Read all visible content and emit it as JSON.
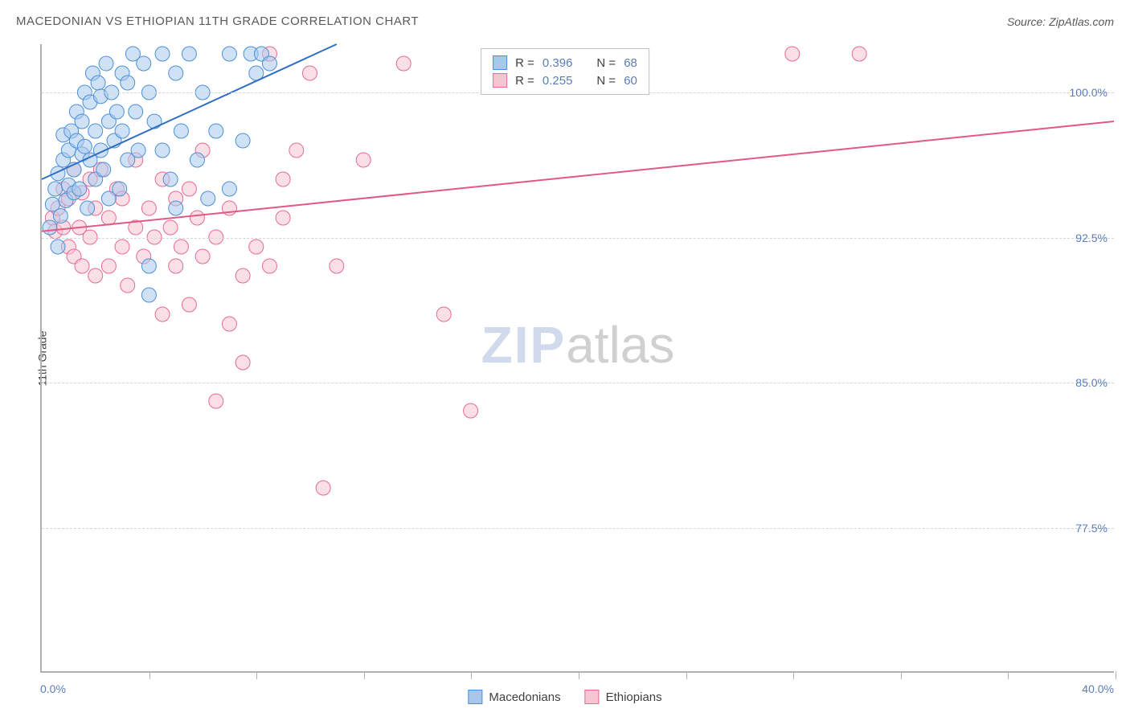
{
  "header": {
    "title": "MACEDONIAN VS ETHIOPIAN 11TH GRADE CORRELATION CHART",
    "source": "Source: ZipAtlas.com"
  },
  "chart": {
    "type": "scatter",
    "xlim": [
      0,
      40
    ],
    "ylim": [
      70,
      102.5
    ],
    "ylabel": "11th Grade",
    "xaxis_left": "0.0%",
    "xaxis_right": "40.0%",
    "yticks": [
      {
        "v": 77.5,
        "label": "77.5%"
      },
      {
        "v": 85.0,
        "label": "85.0%"
      },
      {
        "v": 92.5,
        "label": "92.5%"
      },
      {
        "v": 100.0,
        "label": "100.0%"
      }
    ],
    "xticks_minor": [
      4,
      8,
      12,
      16,
      20,
      24,
      28,
      32,
      36,
      40
    ],
    "grid_color": "#d5d5d5",
    "axis_color": "#b0b0b0",
    "label_color": "#5a7db8",
    "text_color": "#404040",
    "background_color": "#ffffff",
    "marker_radius": 9,
    "marker_opacity": 0.55,
    "line_width": 2,
    "series": [
      {
        "name": "Macedonians",
        "color_fill": "#a7c8ed",
        "color_stroke": "#4a90d9",
        "line_color": "#2e6fc4",
        "R": "0.396",
        "N": "68",
        "trendline": {
          "x1": 0,
          "y1": 95.5,
          "x2": 11,
          "y2": 102.5
        },
        "points": [
          [
            0.3,
            93.0
          ],
          [
            0.4,
            94.2
          ],
          [
            0.5,
            95.0
          ],
          [
            0.6,
            92.0
          ],
          [
            0.6,
            95.8
          ],
          [
            0.7,
            93.6
          ],
          [
            0.8,
            96.5
          ],
          [
            0.8,
            97.8
          ],
          [
            0.9,
            94.4
          ],
          [
            1.0,
            97.0
          ],
          [
            1.0,
            95.2
          ],
          [
            1.1,
            98.0
          ],
          [
            1.2,
            96.0
          ],
          [
            1.2,
            94.8
          ],
          [
            1.3,
            99.0
          ],
          [
            1.3,
            97.5
          ],
          [
            1.4,
            95.0
          ],
          [
            1.5,
            98.5
          ],
          [
            1.5,
            96.8
          ],
          [
            1.6,
            100.0
          ],
          [
            1.6,
            97.2
          ],
          [
            1.7,
            94.0
          ],
          [
            1.8,
            99.5
          ],
          [
            1.8,
            96.5
          ],
          [
            1.9,
            101.0
          ],
          [
            2.0,
            98.0
          ],
          [
            2.0,
            95.5
          ],
          [
            2.1,
            100.5
          ],
          [
            2.2,
            97.0
          ],
          [
            2.2,
            99.8
          ],
          [
            2.3,
            96.0
          ],
          [
            2.4,
            101.5
          ],
          [
            2.5,
            98.5
          ],
          [
            2.5,
            94.5
          ],
          [
            2.6,
            100.0
          ],
          [
            2.7,
            97.5
          ],
          [
            2.8,
            99.0
          ],
          [
            2.9,
            95.0
          ],
          [
            3.0,
            101.0
          ],
          [
            3.0,
            98.0
          ],
          [
            3.2,
            100.5
          ],
          [
            3.2,
            96.5
          ],
          [
            3.4,
            102.0
          ],
          [
            3.5,
            99.0
          ],
          [
            3.6,
            97.0
          ],
          [
            3.8,
            101.5
          ],
          [
            4.0,
            100.0
          ],
          [
            4.0,
            91.0
          ],
          [
            4.2,
            98.5
          ],
          [
            4.5,
            102.0
          ],
          [
            4.5,
            97.0
          ],
          [
            4.8,
            95.5
          ],
          [
            5.0,
            101.0
          ],
          [
            5.0,
            94.0
          ],
          [
            5.2,
            98.0
          ],
          [
            5.5,
            102.0
          ],
          [
            5.8,
            96.5
          ],
          [
            6.0,
            100.0
          ],
          [
            6.2,
            94.5
          ],
          [
            6.5,
            98.0
          ],
          [
            7.0,
            102.0
          ],
          [
            7.0,
            95.0
          ],
          [
            7.5,
            97.5
          ],
          [
            7.8,
            102.0
          ],
          [
            8.0,
            101.0
          ],
          [
            8.2,
            102.0
          ],
          [
            8.5,
            101.5
          ],
          [
            4.0,
            89.5
          ]
        ]
      },
      {
        "name": "Ethiopians",
        "color_fill": "#f5c5d2",
        "color_stroke": "#e86a91",
        "line_color": "#e05a85",
        "R": "0.255",
        "N": "60",
        "trendline": {
          "x1": 0,
          "y1": 92.8,
          "x2": 40,
          "y2": 98.5
        },
        "points": [
          [
            0.4,
            93.5
          ],
          [
            0.5,
            92.8
          ],
          [
            0.6,
            94.0
          ],
          [
            0.8,
            93.0
          ],
          [
            0.8,
            95.0
          ],
          [
            1.0,
            92.0
          ],
          [
            1.0,
            94.5
          ],
          [
            1.2,
            91.5
          ],
          [
            1.2,
            96.0
          ],
          [
            1.4,
            93.0
          ],
          [
            1.5,
            94.8
          ],
          [
            1.5,
            91.0
          ],
          [
            1.8,
            95.5
          ],
          [
            1.8,
            92.5
          ],
          [
            2.0,
            94.0
          ],
          [
            2.0,
            90.5
          ],
          [
            2.2,
            96.0
          ],
          [
            2.5,
            93.5
          ],
          [
            2.5,
            91.0
          ],
          [
            2.8,
            95.0
          ],
          [
            3.0,
            92.0
          ],
          [
            3.0,
            94.5
          ],
          [
            3.2,
            90.0
          ],
          [
            3.5,
            96.5
          ],
          [
            3.5,
            93.0
          ],
          [
            3.8,
            91.5
          ],
          [
            4.0,
            94.0
          ],
          [
            4.2,
            92.5
          ],
          [
            4.5,
            95.5
          ],
          [
            4.5,
            88.5
          ],
          [
            4.8,
            93.0
          ],
          [
            5.0,
            94.5
          ],
          [
            5.0,
            91.0
          ],
          [
            5.2,
            92.0
          ],
          [
            5.5,
            95.0
          ],
          [
            5.5,
            89.0
          ],
          [
            5.8,
            93.5
          ],
          [
            6.0,
            91.5
          ],
          [
            6.0,
            97.0
          ],
          [
            6.5,
            92.5
          ],
          [
            6.5,
            84.0
          ],
          [
            7.0,
            94.0
          ],
          [
            7.0,
            88.0
          ],
          [
            7.5,
            90.5
          ],
          [
            7.5,
            86.0
          ],
          [
            8.0,
            92.0
          ],
          [
            8.5,
            91.0
          ],
          [
            8.5,
            102.0
          ],
          [
            9.0,
            93.5
          ],
          [
            9.0,
            95.5
          ],
          [
            9.5,
            97.0
          ],
          [
            10.0,
            101.0
          ],
          [
            10.5,
            79.5
          ],
          [
            11.0,
            91.0
          ],
          [
            12.0,
            96.5
          ],
          [
            13.5,
            101.5
          ],
          [
            15.0,
            88.5
          ],
          [
            16.0,
            83.5
          ],
          [
            28.0,
            102.0
          ],
          [
            30.5,
            102.0
          ]
        ]
      }
    ],
    "legend_box": {
      "rows": [
        {
          "series": 0,
          "text1": "R =",
          "val1": "0.396",
          "text2": "N =",
          "val2": "68"
        },
        {
          "series": 1,
          "text1": "R =",
          "val1": "0.255",
          "text2": "N =",
          "val2": "60"
        }
      ]
    },
    "bottom_legend": [
      {
        "series": 0,
        "label": "Macedonians"
      },
      {
        "series": 1,
        "label": "Ethiopians"
      }
    ],
    "watermark": {
      "part1": "ZIP",
      "part2": "atlas"
    }
  }
}
